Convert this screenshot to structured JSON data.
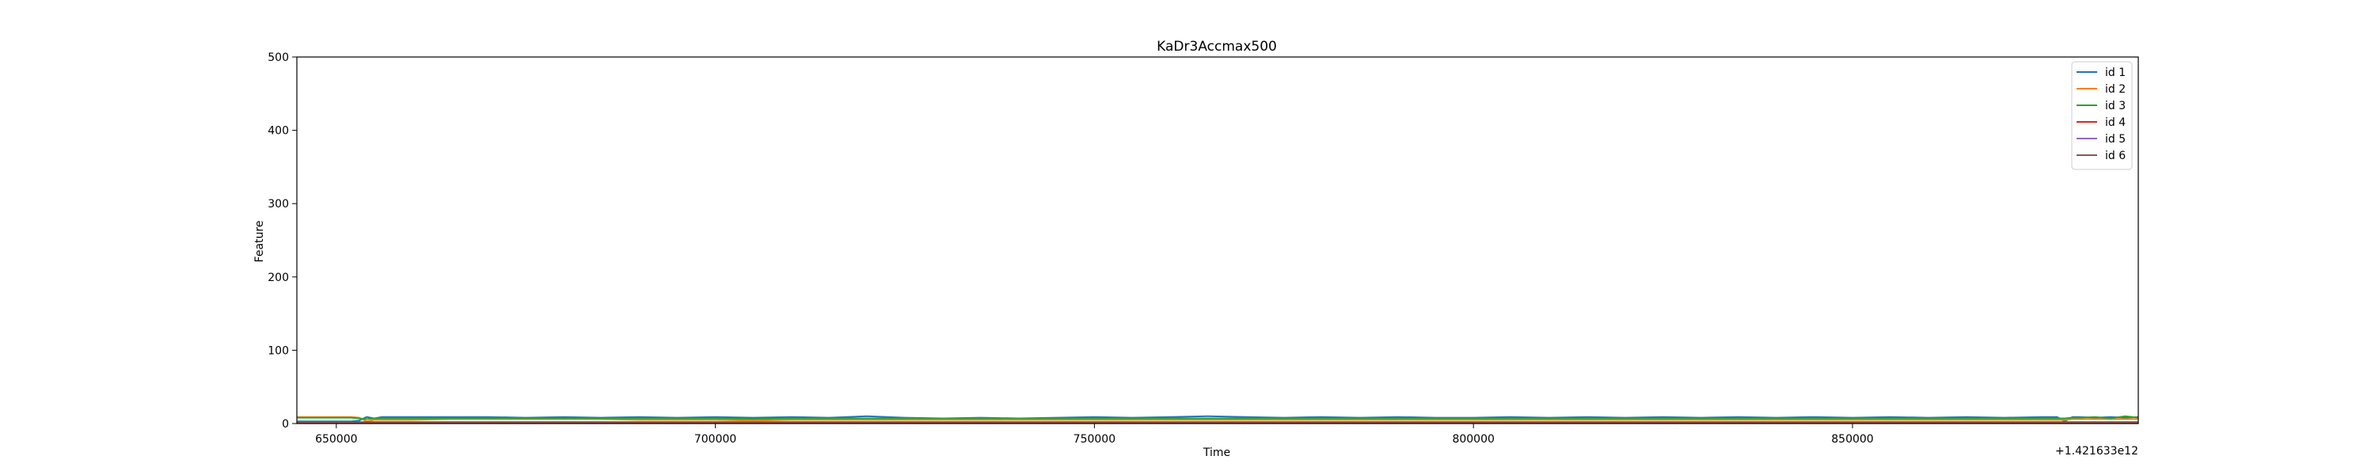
{
  "chart_data": {
    "type": "line",
    "title": "KaDr3Accmax500",
    "xlabel": "Time",
    "ylabel": "Feature",
    "x_offset_label": "+1.421633e12",
    "xlim": [
      644800,
      887700
    ],
    "ylim": [
      0,
      500
    ],
    "x_ticks": [
      650000,
      700000,
      750000,
      800000,
      850000
    ],
    "x_tick_labels": [
      "650000",
      "700000",
      "750000",
      "800000",
      "850000"
    ],
    "y_ticks": [
      0,
      100,
      200,
      300,
      400,
      500
    ],
    "y_tick_labels": [
      "0",
      "100",
      "200",
      "300",
      "400",
      "500"
    ],
    "grid": false,
    "legend_position": "upper right",
    "x": [
      644800,
      652000,
      653000,
      654000,
      655000,
      656000,
      660000,
      665000,
      670000,
      675000,
      680000,
      685000,
      690000,
      695000,
      700000,
      705000,
      710000,
      715000,
      720000,
      725000,
      730000,
      735000,
      740000,
      745000,
      750000,
      755000,
      760000,
      765000,
      770000,
      775000,
      780000,
      785000,
      790000,
      795000,
      800000,
      805000,
      810000,
      815000,
      820000,
      825000,
      830000,
      835000,
      840000,
      845000,
      850000,
      855000,
      860000,
      865000,
      870000,
      875000,
      877000,
      878000,
      879000,
      880000,
      882000,
      884000,
      886000,
      887700
    ],
    "series": [
      {
        "name": "id 1",
        "color": "#1f77b4",
        "values": [
          3,
          3,
          4,
          9,
          7,
          9,
          9,
          9,
          9,
          8,
          9,
          8,
          9,
          8,
          9,
          8,
          9,
          8,
          10,
          8,
          7,
          8,
          7,
          8,
          9,
          8,
          9,
          10,
          9,
          8,
          9,
          8,
          9,
          8,
          8,
          9,
          8,
          9,
          8,
          9,
          8,
          9,
          8,
          9,
          8,
          9,
          8,
          9,
          8,
          9,
          9,
          3,
          9,
          9,
          8,
          9,
          8,
          9
        ]
      },
      {
        "name": "id 2",
        "color": "#ff7f0e",
        "values": [
          9,
          9,
          8,
          3,
          5,
          5,
          5,
          6,
          6,
          6,
          6,
          6,
          5,
          5,
          5,
          4,
          5,
          5,
          5,
          5,
          5,
          5,
          5,
          5,
          5,
          5,
          5,
          5,
          5,
          5,
          5,
          5,
          5,
          5,
          5,
          5,
          5,
          5,
          5,
          5,
          5,
          5,
          5,
          5,
          5,
          5,
          5,
          5,
          5,
          5,
          5,
          5,
          6,
          6,
          6,
          6,
          6,
          6
        ]
      },
      {
        "name": "id 3",
        "color": "#2ca02c",
        "values": [
          8,
          8,
          7,
          6,
          7,
          7,
          7,
          7,
          7,
          7,
          7,
          7,
          7,
          7,
          7,
          6,
          7,
          7,
          7,
          7,
          7,
          7,
          7,
          7,
          7,
          7,
          7,
          7,
          7,
          7,
          7,
          7,
          7,
          7,
          7,
          7,
          7,
          7,
          7,
          7,
          7,
          7,
          7,
          7,
          7,
          7,
          7,
          7,
          7,
          7,
          7,
          7,
          8,
          8,
          9,
          7,
          10,
          8
        ]
      },
      {
        "name": "id 4",
        "color": "#d62728",
        "values": [
          2,
          2,
          2,
          2,
          2,
          2,
          2,
          2,
          2,
          2,
          2,
          2,
          2,
          2,
          2,
          2,
          2,
          2,
          2,
          2,
          2,
          2,
          2,
          2,
          2,
          2,
          2,
          2,
          2,
          2,
          2,
          2,
          2,
          2,
          2,
          2,
          2,
          2,
          2,
          2,
          2,
          2,
          2,
          2,
          2,
          2,
          2,
          2,
          2,
          2,
          2,
          2,
          2,
          2,
          2,
          2,
          2,
          2
        ]
      },
      {
        "name": "id 5",
        "color": "#9467bd",
        "values": [
          1,
          1,
          1,
          1,
          1,
          1,
          1,
          1,
          1,
          1,
          1,
          1,
          1,
          1,
          1,
          1,
          1,
          1,
          1,
          1,
          1,
          1,
          1,
          1,
          1,
          1,
          1,
          1,
          1,
          1,
          1,
          1,
          1,
          1,
          1,
          1,
          1,
          1,
          1,
          1,
          1,
          1,
          1,
          1,
          1,
          1,
          1,
          1,
          1,
          1,
          1,
          1,
          1,
          1,
          1,
          1,
          1,
          1
        ]
      },
      {
        "name": "id 6",
        "color": "#8c564b",
        "values": [
          1,
          1,
          1,
          1,
          1,
          1,
          1,
          1,
          1,
          1,
          1,
          1,
          1,
          1,
          1,
          1,
          1,
          1,
          1,
          1,
          1,
          1,
          1,
          1,
          1,
          1,
          1,
          1,
          1,
          1,
          1,
          1,
          1,
          1,
          1,
          1,
          1,
          1,
          1,
          1,
          1,
          1,
          1,
          1,
          1,
          1,
          1,
          1,
          1,
          1,
          1,
          1,
          1,
          1,
          1,
          1,
          1,
          1
        ]
      }
    ]
  }
}
